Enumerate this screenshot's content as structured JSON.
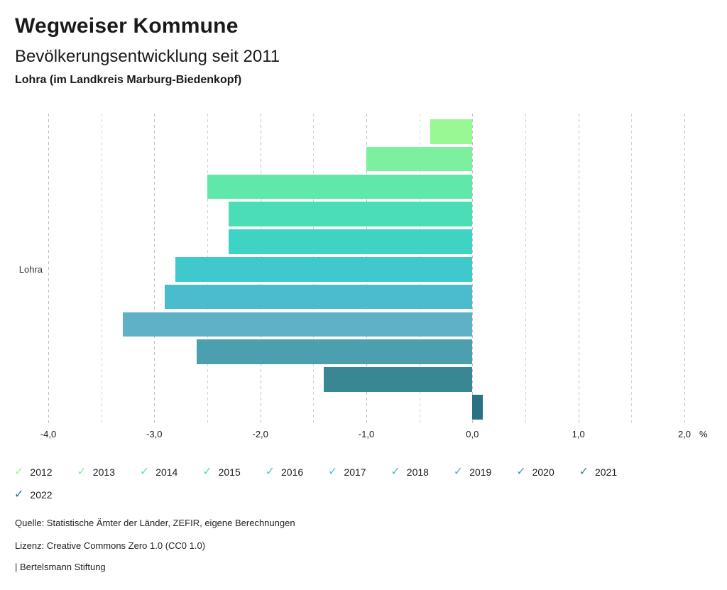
{
  "header": {
    "title": "Wegweiser Kommune",
    "subtitle": "Bevölkerungsentwicklung seit 2011",
    "region": "Lohra (im Landkreis Marburg-Biedenkopf)"
  },
  "chart_data": {
    "type": "bar",
    "orientation": "horizontal",
    "title": "Bevölkerungsentwicklung seit 2011",
    "category_label": "Lohra",
    "unit": "%",
    "xlim": [
      -4.0,
      2.0
    ],
    "grid": "dashed vertical, step 0.5",
    "legend_position": "bottom",
    "x_tick_labels": [
      "-4,0",
      "-3,0",
      "-2,0",
      "-1,0",
      "0,0",
      "1,0",
      "2,0"
    ],
    "x_tick_values": [
      -4,
      -3,
      -2,
      -1,
      0,
      1,
      2
    ],
    "series": [
      {
        "name": "2012",
        "value": -0.4,
        "color": "#99F794"
      },
      {
        "name": "2013",
        "value": -1.0,
        "color": "#7DF0A0"
      },
      {
        "name": "2014",
        "value": -2.5,
        "color": "#60E7AA"
      },
      {
        "name": "2015",
        "value": -2.3,
        "color": "#4BDDB6"
      },
      {
        "name": "2016",
        "value": -2.3,
        "color": "#3ED3C5"
      },
      {
        "name": "2017",
        "value": -2.8,
        "color": "#40C9CD"
      },
      {
        "name": "2018",
        "value": -2.9,
        "color": "#4BBCCE"
      },
      {
        "name": "2019",
        "value": -3.3,
        "color": "#5EB1C6"
      },
      {
        "name": "2020",
        "value": -2.6,
        "color": "#4C9FAF"
      },
      {
        "name": "2021",
        "value": -1.4,
        "color": "#3A8794"
      },
      {
        "name": "2022",
        "value": 0.1,
        "color": "#2A7183"
      }
    ]
  },
  "legend": {
    "check_glyph": "✓",
    "row1": [
      "2012",
      "2013",
      "2014",
      "2015",
      "2016",
      "2017",
      "2018",
      "2019",
      "2020",
      "2021"
    ],
    "row2": [
      "2022"
    ]
  },
  "footer": {
    "source": "Quelle: Statistische Ämter der Länder, ZEFIR, eigene Berechnungen",
    "license": "Lizenz: Creative Commons Zero 1.0 (CC0 1.0)",
    "brand": "| Bertelsmann Stiftung"
  }
}
